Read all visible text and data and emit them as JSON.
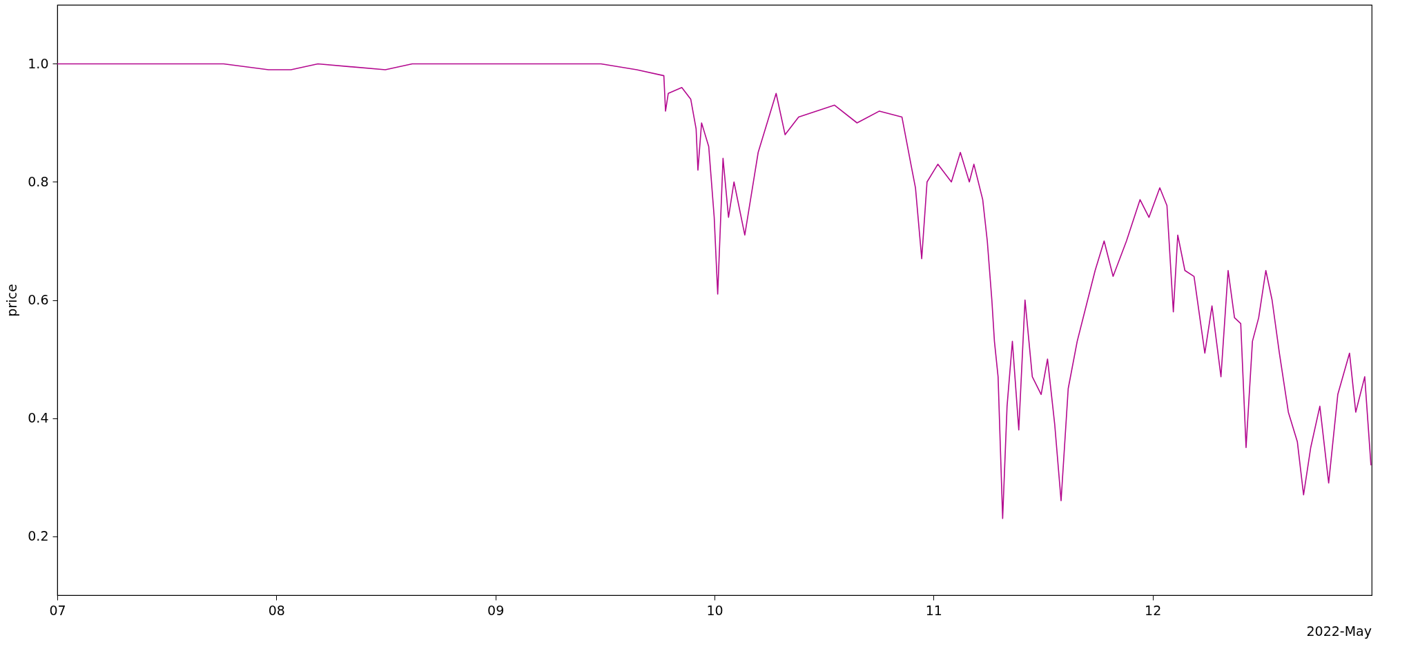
{
  "chart_data": {
    "type": "line",
    "ylabel": "price",
    "xlim": [
      "2022-05-07",
      "2022-05-13"
    ],
    "xticks": [
      {
        "value": "2022-05-07",
        "label": "07"
      },
      {
        "value": "2022-05-08",
        "label": "08"
      },
      {
        "value": "2022-05-09",
        "label": "09"
      },
      {
        "value": "2022-05-10",
        "label": "10"
      },
      {
        "value": "2022-05-11",
        "label": "11"
      },
      {
        "value": "2022-05-12",
        "label": "12"
      }
    ],
    "ylim": [
      0.1,
      1.1
    ],
    "yticks": [
      {
        "value": 0.2,
        "label": "0.2"
      },
      {
        "value": 0.4,
        "label": "0.4"
      },
      {
        "value": 0.6,
        "label": "0.6"
      },
      {
        "value": 0.8,
        "label": "0.8"
      },
      {
        "value": 1.0,
        "label": "1.0"
      }
    ],
    "annotations": [
      "2022-May"
    ],
    "series": [
      {
        "color": "#b3078e",
        "x": [
          "2022-05-07T00:00",
          "2022-05-07T18:13",
          "2022-05-07T23:08",
          "2022-05-08T01:36",
          "2022-05-08T04:33",
          "2022-05-08T11:56",
          "2022-05-08T14:53",
          "2022-05-09T11:34",
          "2022-05-09T15:29",
          "2022-05-09T18:27",
          "2022-05-09T18:38",
          "2022-05-09T18:56",
          "2022-05-09T20:25",
          "2022-05-09T21:24",
          "2022-05-09T21:59",
          "2022-05-09T22:11",
          "2022-05-09T22:35",
          "2022-05-09T23:22",
          "2022-05-09T23:58",
          "2022-05-10T00:21",
          "2022-05-10T00:56",
          "2022-05-10T01:32",
          "2022-05-10T02:08",
          "2022-05-10T03:19",
          "2022-05-10T04:47",
          "2022-05-10T06:45",
          "2022-05-10T07:44",
          "2022-05-10T09:13",
          "2022-05-10T13:09",
          "2022-05-10T15:37",
          "2022-05-10T18:04",
          "2022-05-10T20:32",
          "2022-05-10T21:31",
          "2022-05-10T22:01",
          "2022-05-10T22:42",
          "2022-05-10T23:17",
          "2022-05-11T00:28",
          "2022-05-11T01:57",
          "2022-05-11T02:56",
          "2022-05-11T03:55",
          "2022-05-11T04:25",
          "2022-05-11T05:23",
          "2022-05-11T05:53",
          "2022-05-11T06:23",
          "2022-05-11T06:40",
          "2022-05-11T07:04",
          "2022-05-11T07:34",
          "2022-05-11T08:03",
          "2022-05-11T08:38",
          "2022-05-11T09:20",
          "2022-05-11T10:01",
          "2022-05-11T10:49",
          "2022-05-11T11:47",
          "2022-05-11T12:29",
          "2022-05-11T13:16",
          "2022-05-11T13:58",
          "2022-05-11T14:45",
          "2022-05-11T15:44",
          "2022-05-11T16:43",
          "2022-05-11T17:42",
          "2022-05-11T18:41",
          "2022-05-11T19:40",
          "2022-05-11T21:08",
          "2022-05-11T22:37",
          "2022-05-11T23:36",
          "2022-05-12T00:47",
          "2022-05-12T01:34",
          "2022-05-12T02:16",
          "2022-05-12T02:45",
          "2022-05-12T03:32",
          "2022-05-12T04:32",
          "2022-05-12T05:43",
          "2022-05-12T06:30",
          "2022-05-12T07:29",
          "2022-05-12T08:16",
          "2022-05-12T08:58",
          "2022-05-12T09:39",
          "2022-05-12T10:14",
          "2022-05-12T10:56",
          "2022-05-12T11:37",
          "2022-05-12T12:24",
          "2022-05-12T13:05",
          "2022-05-12T13:53",
          "2022-05-12T14:52",
          "2022-05-12T15:51",
          "2022-05-12T16:32",
          "2022-05-12T17:19",
          "2022-05-12T18:19",
          "2022-05-12T19:17",
          "2022-05-12T20:17",
          "2022-05-12T21:34",
          "2022-05-12T22:15",
          "2022-05-12T23:14",
          "2022-05-12T23:55"
        ],
        "values": [
          1.0,
          1.0,
          0.99,
          0.99,
          1.0,
          0.99,
          1.0,
          1.0,
          0.99,
          0.98,
          0.92,
          0.95,
          0.96,
          0.94,
          0.89,
          0.82,
          0.9,
          0.86,
          0.74,
          0.61,
          0.84,
          0.74,
          0.8,
          0.71,
          0.85,
          0.95,
          0.88,
          0.91,
          0.93,
          0.9,
          0.92,
          0.91,
          0.83,
          0.79,
          0.67,
          0.8,
          0.83,
          0.8,
          0.85,
          0.8,
          0.83,
          0.77,
          0.7,
          0.6,
          0.53,
          0.47,
          0.23,
          0.42,
          0.53,
          0.38,
          0.6,
          0.47,
          0.44,
          0.5,
          0.39,
          0.26,
          0.45,
          0.53,
          0.59,
          0.65,
          0.7,
          0.64,
          0.7,
          0.77,
          0.74,
          0.79,
          0.76,
          0.58,
          0.71,
          0.65,
          0.64,
          0.51,
          0.59,
          0.47,
          0.65,
          0.57,
          0.56,
          0.35,
          0.53,
          0.57,
          0.65,
          0.6,
          0.51,
          0.41,
          0.36,
          0.27,
          0.35,
          0.42,
          0.29,
          0.44,
          0.51,
          0.41,
          0.47,
          0.32
        ]
      }
    ]
  }
}
